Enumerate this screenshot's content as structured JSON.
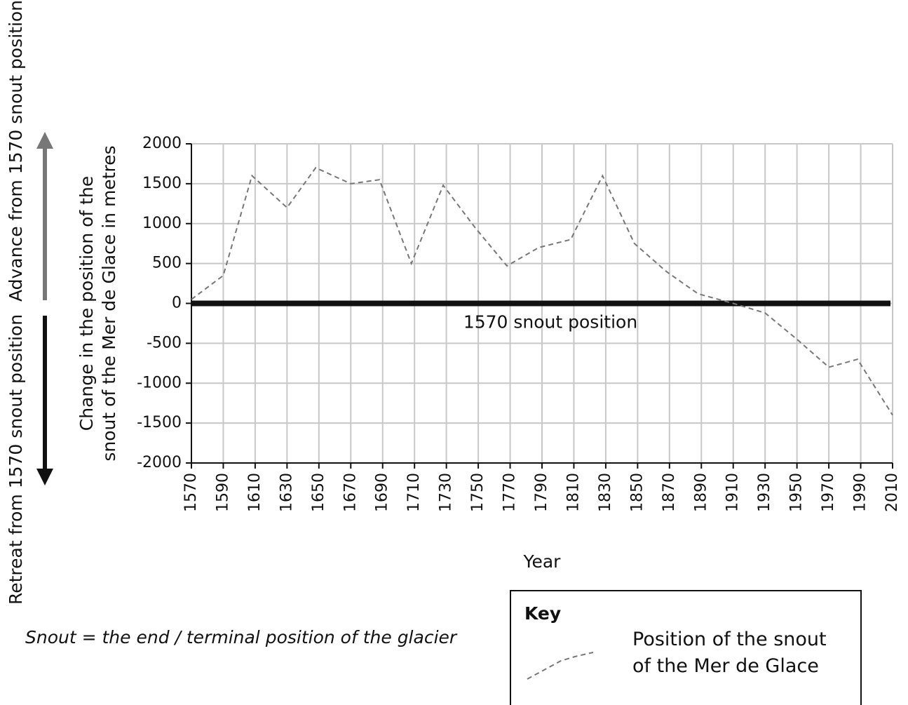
{
  "chart_data": {
    "type": "line",
    "ylabel": [
      "Change in the position of the",
      "snout of the Mer de Glace in metres"
    ],
    "xlabel": "Year",
    "advance_label": "Advance from 1570 snout position",
    "retreat_label": "Retreat from 1570 snout position",
    "reference_line": {
      "value": 0,
      "label": "1570 snout position"
    },
    "footnote": "Snout = the end / terminal position of the glacier",
    "legend_title": "Key",
    "x": [
      1570,
      1590,
      1608,
      1630,
      1648,
      1670,
      1688,
      1708,
      1728,
      1748,
      1768,
      1788,
      1808,
      1828,
      1848,
      1868,
      1888,
      1910,
      1930,
      1950,
      1970,
      1988,
      2010
    ],
    "series": [
      {
        "name": "Position of the snout of the Mer de Glace",
        "color": "#777777",
        "values": [
          50,
          350,
          1600,
          1200,
          1700,
          1500,
          1550,
          500,
          1480,
          950,
          470,
          700,
          800,
          1600,
          750,
          400,
          120,
          0,
          -120,
          -450,
          -800,
          -700,
          -1400
        ]
      }
    ],
    "xlim": [
      1570,
      2010
    ],
    "xticks": [
      1570,
      1590,
      1610,
      1630,
      1650,
      1670,
      1690,
      1710,
      1730,
      1750,
      1770,
      1790,
      1810,
      1830,
      1850,
      1870,
      1890,
      1910,
      1930,
      1950,
      1970,
      1990,
      2010
    ],
    "ylim": [
      -2000,
      2000
    ],
    "yticks": [
      2000,
      1500,
      1000,
      500,
      0,
      -500,
      -1000,
      -1500,
      -2000
    ],
    "grid": true
  }
}
